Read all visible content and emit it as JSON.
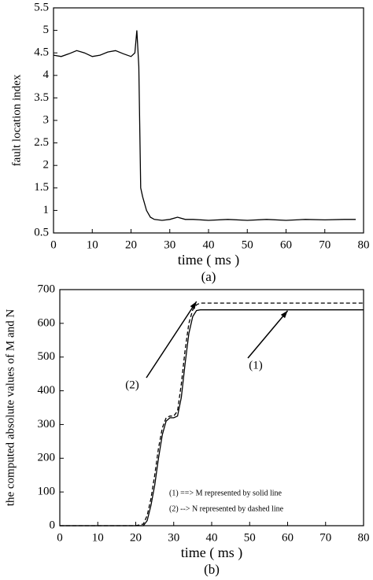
{
  "chart_data": [
    {
      "type": "line",
      "ylabel": "fault location index",
      "xlabel": "time ( ms )",
      "caption": "(a)",
      "x": [
        0,
        2,
        4,
        6,
        8,
        10,
        12,
        14,
        16,
        18,
        20,
        21,
        21.5,
        22,
        22.5,
        23,
        24,
        25,
        26,
        28,
        30,
        32,
        34,
        36,
        40,
        45,
        50,
        55,
        60,
        65,
        70,
        75,
        78
      ],
      "values": [
        4.45,
        4.42,
        4.48,
        4.55,
        4.5,
        4.42,
        4.45,
        4.52,
        4.55,
        4.48,
        4.42,
        4.5,
        5.0,
        4.2,
        1.5,
        1.3,
        1.0,
        0.85,
        0.8,
        0.78,
        0.8,
        0.85,
        0.8,
        0.8,
        0.78,
        0.8,
        0.78,
        0.8,
        0.78,
        0.8,
        0.79,
        0.8,
        0.8
      ],
      "color": "#000000",
      "xlim": [
        0,
        80
      ],
      "xticks": [
        0,
        10,
        20,
        30,
        40,
        50,
        60,
        70,
        80
      ],
      "ylim": [
        0.5,
        5.5
      ],
      "yticks": [
        0.5,
        1,
        1.5,
        2,
        2.5,
        3,
        3.5,
        4,
        4.5,
        5,
        5.5
      ]
    },
    {
      "type": "line",
      "ylabel": "the computed absolute values of M and N",
      "xlabel": "time ( ms )",
      "caption": "(b)",
      "x": [
        0,
        20,
        22,
        23,
        24,
        25,
        26,
        27,
        28,
        29,
        30,
        31,
        32,
        33,
        34,
        35,
        36,
        37,
        40,
        50,
        60,
        70,
        80
      ],
      "series": [
        {
          "name": "(1) ==> M represented by solid line",
          "color": "#000000",
          "dashed": false,
          "values": [
            0,
            0,
            0,
            15,
            60,
            120,
            200,
            270,
            310,
            320,
            320,
            325,
            380,
            480,
            570,
            620,
            638,
            640,
            640,
            640,
            640,
            640,
            640
          ]
        },
        {
          "name": "(2) --> N represented by dashed line",
          "color": "#000000",
          "dashed": true,
          "values": [
            0,
            0,
            5,
            30,
            80,
            150,
            230,
            290,
            320,
            325,
            325,
            340,
            420,
            520,
            600,
            640,
            655,
            660,
            660,
            660,
            660,
            660,
            660
          ]
        }
      ],
      "annotations": [
        "(1)",
        "(2)"
      ],
      "xlim": [
        0,
        80
      ],
      "xticks": [
        0,
        10,
        20,
        30,
        40,
        50,
        60,
        70,
        80
      ],
      "ylim": [
        0,
        700
      ],
      "yticks": [
        0,
        100,
        200,
        300,
        400,
        500,
        600,
        700
      ]
    }
  ]
}
